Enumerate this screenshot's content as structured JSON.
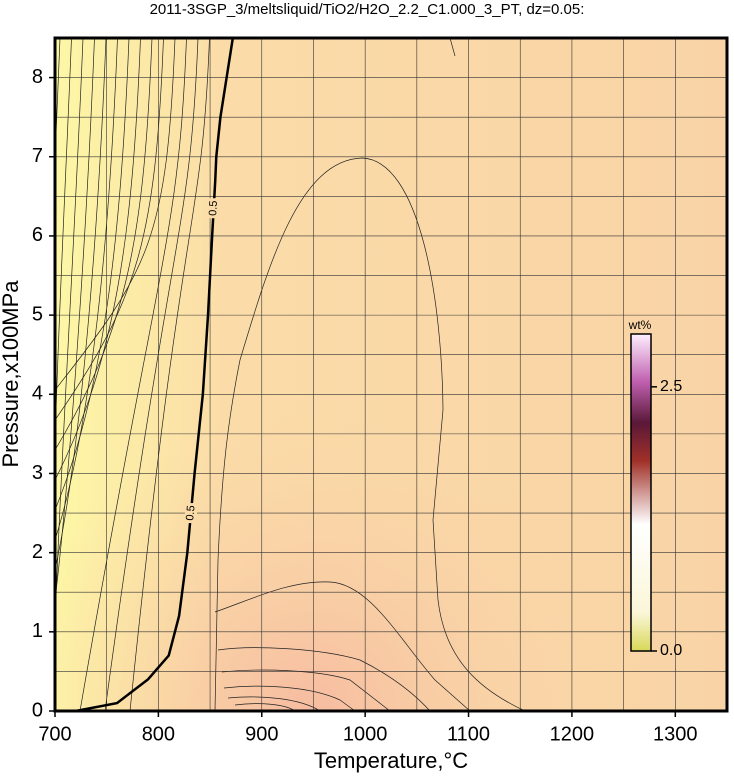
{
  "chart_data": {
    "type": "contour",
    "title": "2011-3SGP_3/meltsliquid/TiO2/H2O_2.2_C1.000_3_PT, dz=0.05:",
    "xlabel": "Temperature,°C",
    "ylabel": "Pressure,x100MPa",
    "xlim": [
      700,
      1350
    ],
    "ylim": [
      0,
      8.5
    ],
    "xticks": [
      700,
      800,
      900,
      1000,
      1100,
      1200,
      1300
    ],
    "yticks": [
      0,
      1,
      2,
      3,
      4,
      5,
      6,
      7,
      8
    ],
    "xminorticks": [
      750,
      850,
      950,
      1050,
      1150,
      1250
    ],
    "yminorticks": [
      0.5,
      1.5,
      2.5,
      3.5,
      4.5,
      5.5,
      6.5,
      7.5
    ],
    "grid": true,
    "contours": [
      {
        "level": 0.5,
        "color": "#000000",
        "x": [
          720,
          760,
          790,
          810,
          820,
          828,
          835,
          843,
          848,
          852,
          855,
          856,
          860,
          866,
          872
        ],
        "y": [
          0,
          0.1,
          0.4,
          0.7,
          1.2,
          2.0,
          3.0,
          4.0,
          5.0,
          6.0,
          6.7,
          7.0,
          7.5,
          8.0,
          8.5
        ]
      }
    ],
    "colorbar": {
      "label": "wt%",
      "lim": [
        0,
        3.0
      ],
      "ticks": [
        {
          "value": 0,
          "label": "0.0"
        },
        {
          "value": 2.5,
          "label": "2.5"
        }
      ]
    }
  }
}
